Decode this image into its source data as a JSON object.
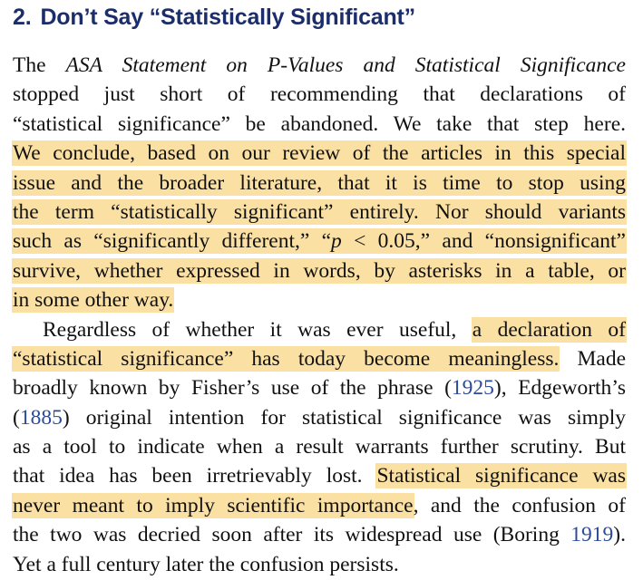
{
  "section": {
    "number": "2.",
    "title": "Don’t Say “Statistically Significant”"
  },
  "lines": [
    {
      "segments": [
        {
          "t": "The "
        },
        {
          "t": "ASA Statement on P-Values and Statistical Significance",
          "italic": true
        }
      ]
    },
    {
      "segments": [
        {
          "t": "stopped just short of recommending that declarations of"
        }
      ]
    },
    {
      "segments": [
        {
          "t": "“statistical significance” be abandoned. We take that step here."
        }
      ]
    },
    {
      "segments": [
        {
          "t": "We conclude, based on our review of the articles in this special",
          "hl": true
        }
      ]
    },
    {
      "segments": [
        {
          "t": "issue and the broader literature, that it is time to stop using",
          "hl": true
        }
      ]
    },
    {
      "segments": [
        {
          "t": "the term “statistically significant” entirely. Nor should variants",
          "hl": true
        }
      ]
    },
    {
      "segments": [
        {
          "t": "such as “significantly different,” “",
          "hl": true
        },
        {
          "t": "p",
          "italic": true,
          "hl": true
        },
        {
          "t": " < 0.05,” and “nonsignificant”",
          "hl": true
        }
      ]
    },
    {
      "segments": [
        {
          "t": "survive, whether expressed in words, by asterisks in a table, or",
          "hl": true
        }
      ]
    },
    {
      "last": true,
      "segments": [
        {
          "t": "in some other way.",
          "hl": true
        }
      ]
    },
    {
      "indent": true,
      "segments": [
        {
          "t": "Regardless of whether it was ever useful, "
        },
        {
          "t": "a declaration of",
          "hl": true
        }
      ]
    },
    {
      "segments": [
        {
          "t": "“statistical significance” has today become meaningless.",
          "hl": true
        },
        {
          "t": " Made"
        }
      ]
    },
    {
      "segments": [
        {
          "t": "broadly known by Fisher’s use of the phrase ("
        },
        {
          "t": "1925",
          "ref": true
        },
        {
          "t": "), Edgeworth’s"
        }
      ]
    },
    {
      "segments": [
        {
          "t": "("
        },
        {
          "t": "1885",
          "ref": true
        },
        {
          "t": ") original intention for statistical significance was simply"
        }
      ]
    },
    {
      "segments": [
        {
          "t": "as a tool to indicate when a result warrants further scrutiny. But"
        }
      ]
    },
    {
      "segments": [
        {
          "t": "that idea has been irretrievably lost. "
        },
        {
          "t": "Statistical significance was",
          "hl": true
        }
      ]
    },
    {
      "segments": [
        {
          "t": "never meant to imply scientific importance",
          "hl": true
        },
        {
          "t": ", and the confusion of"
        }
      ]
    },
    {
      "segments": [
        {
          "t": "the two was decried soon after its widespread use (Boring "
        },
        {
          "t": "1919",
          "ref": true
        },
        {
          "t": ")."
        }
      ]
    },
    {
      "last": true,
      "segments": [
        {
          "t": "Yet a full century later the confusion persists."
        }
      ]
    }
  ]
}
